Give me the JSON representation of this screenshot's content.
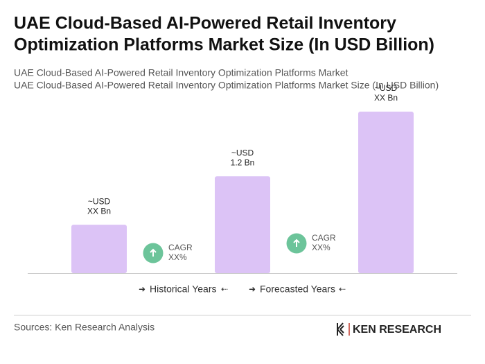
{
  "chart_data": {
    "type": "bar",
    "title": [
      "UAE Cloud-Based AI-Powered Retail Inventory",
      "Optimization Platforms Market Size (In USD Billion)"
    ],
    "subtitles": [
      "UAE Cloud-Based AI-Powered Retail Inventory Optimization Platforms Market",
      "UAE Cloud-Based AI-Powered Retail Inventory Optimization Platforms Market Size (In USD Billion)"
    ],
    "categories": [
      null,
      null,
      null
    ],
    "values": [
      0.6,
      1.2,
      2.0
    ],
    "value_labels": [
      [
        "~USD",
        "XX Bn"
      ],
      [
        "~USD",
        "1.2 Bn"
      ],
      [
        "~USD",
        "XX Bn"
      ]
    ],
    "color": "#dcc3f6",
    "annotations": [
      [
        "CAGR",
        "XX%"
      ],
      [
        "CAGR",
        "XX%"
      ]
    ],
    "legend": [
      "Historical Years",
      "Forecasted Years"
    ],
    "source": "Sources: Ken Research Analysis",
    "logo": "KEN RESEARCH"
  }
}
